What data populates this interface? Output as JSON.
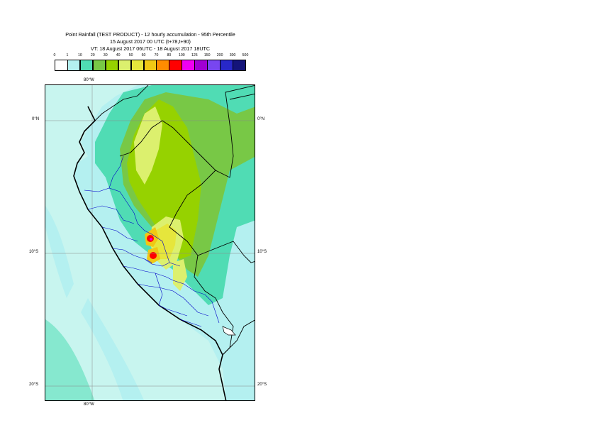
{
  "title": {
    "line1": "Point Rainfall (TEST PRODUCT) - 12 hourly accumulation - 95th Percentile",
    "line2": "15 August 2017 00 UTC (t+78,t+90)",
    "line3": "VT: 18 August 2017 06UTC - 18 August 2017 18UTC"
  },
  "legend": {
    "labels": [
      "0",
      "1",
      "10",
      "20",
      "30",
      "40",
      "50",
      "60",
      "70",
      "80",
      "100",
      "125",
      "150",
      "200",
      "300",
      "500"
    ],
    "colors": [
      "#ffffff",
      "#b4f0f0",
      "#50dcb4",
      "#78c846",
      "#96d200",
      "#dcf06e",
      "#e6e63c",
      "#f0c814",
      "#ff8c00",
      "#ff0000",
      "#f000f0",
      "#a000d2",
      "#7846f0",
      "#2828c8",
      "#14147a"
    ]
  },
  "map": {
    "lat_labels": [
      "0°N",
      "10°S",
      "20°S"
    ],
    "lon_labels": [
      "80°W",
      "80°W"
    ]
  }
}
